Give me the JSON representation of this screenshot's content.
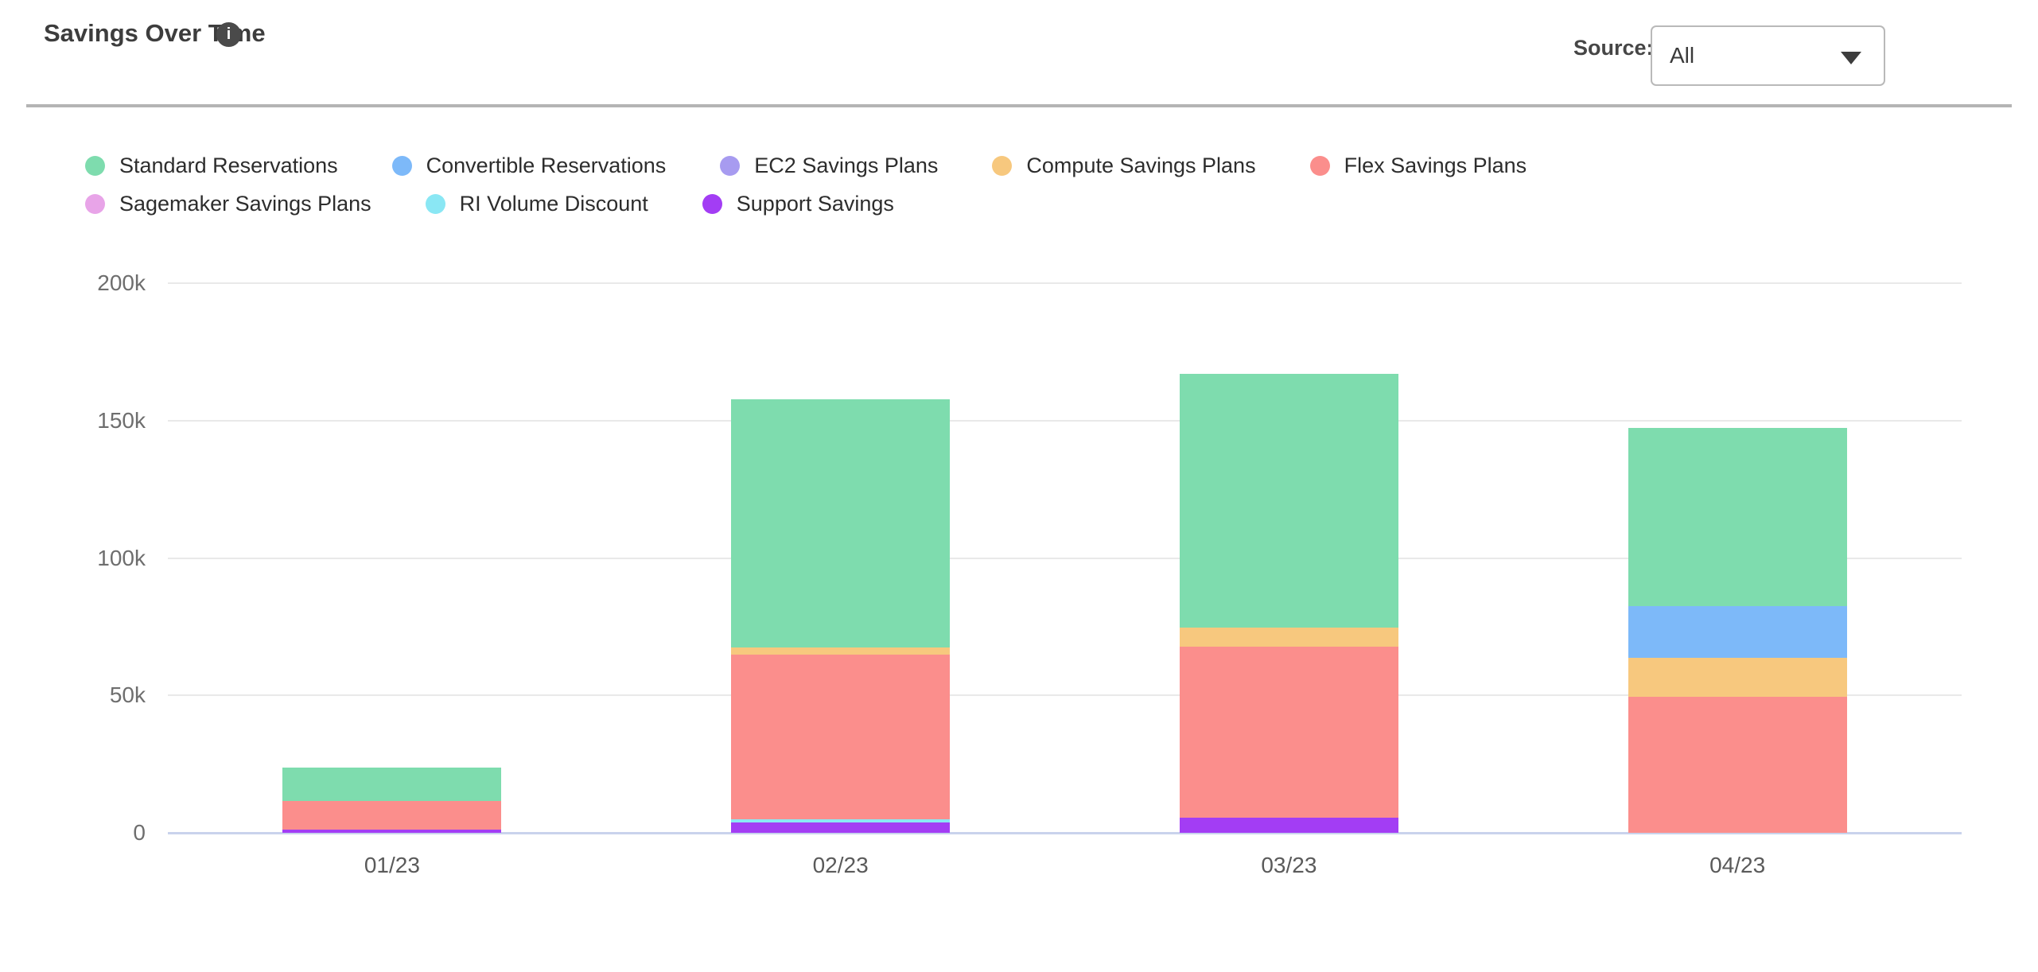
{
  "header": {
    "title": "Savings Over Time",
    "info_glyph": "i",
    "source_label": "Source:",
    "source_value": "All"
  },
  "chart_data": {
    "type": "bar",
    "stacked": true,
    "title": "Savings Over Time",
    "categories": [
      "01/23",
      "02/23",
      "03/23",
      "04/23"
    ],
    "series": [
      {
        "name": "Standard Reservations",
        "color": "#7edcae",
        "values": [
          12.3,
          90.3,
          92.5,
          65.0
        ]
      },
      {
        "name": "Convertible Reservations",
        "color": "#7db9f9",
        "values": [
          0,
          0,
          0,
          18.8
        ]
      },
      {
        "name": "EC2 Savings Plans",
        "color": "#a79bf0",
        "values": [
          0,
          0,
          0,
          0
        ]
      },
      {
        "name": "Compute Savings Plans",
        "color": "#f7c87e",
        "values": [
          0,
          2.4,
          7.0,
          14.2
        ]
      },
      {
        "name": "Flex Savings Plans",
        "color": "#fb8e8c",
        "values": [
          10.2,
          59.9,
          62.1,
          49.4
        ]
      },
      {
        "name": "Sagemaker Savings Plans",
        "color": "#e8a4e8",
        "values": [
          0,
          0,
          0,
          0
        ]
      },
      {
        "name": "RI Volume Discount",
        "color": "#8ae7f4",
        "values": [
          0,
          1.1,
          0,
          0
        ]
      },
      {
        "name": "Support Savings",
        "color": "#a33df4",
        "values": [
          1.3,
          3.9,
          5.5,
          0
        ]
      }
    ],
    "stack_note": "stacked bottom-to-top in reverse legend order (Support Savings at bottom, Standard Reservations on top)",
    "unit": "thousands",
    "ylim": [
      0,
      200
    ],
    "y_tick_values": [
      0,
      50,
      100,
      150,
      200
    ],
    "y_tick_labels": [
      "0",
      "50k",
      "100k",
      "150k",
      "200k"
    ],
    "grid": true,
    "legend_position": "top"
  }
}
